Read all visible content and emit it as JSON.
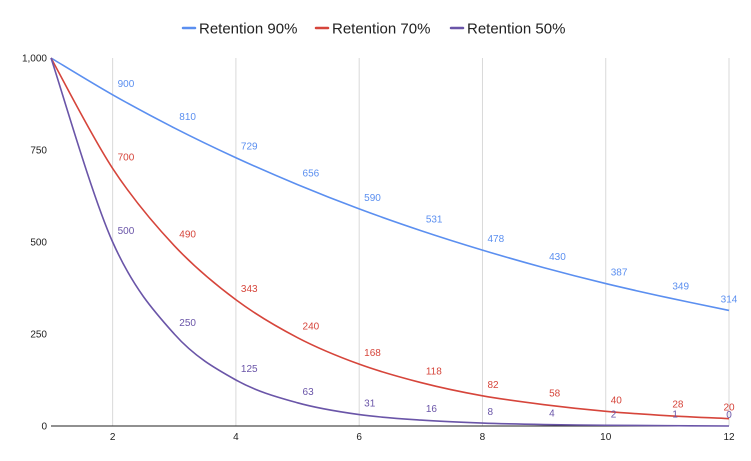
{
  "chart_data": {
    "type": "line",
    "title": "",
    "xlabel": "",
    "ylabel": "",
    "xlim": [
      1,
      12
    ],
    "ylim": [
      0,
      1000
    ],
    "x_ticks": [
      2,
      4,
      6,
      8,
      10,
      12
    ],
    "x_tick_labels": [
      "2",
      "4",
      "6",
      "8",
      "10",
      "12"
    ],
    "y_ticks": [
      0,
      250,
      500,
      750,
      1000
    ],
    "y_tick_labels": [
      "0",
      "250",
      "500",
      "750",
      "1,000"
    ],
    "grid": "vertical",
    "legend_position": "top-center",
    "x": [
      1,
      2,
      3,
      4,
      5,
      6,
      7,
      8,
      9,
      10,
      11,
      12
    ],
    "series": [
      {
        "name": "Retention 90%",
        "color": "#5b8ff0",
        "values": [
          1000,
          900,
          810,
          729,
          656,
          590,
          531,
          478,
          430,
          387,
          349,
          314
        ],
        "labels": [
          "",
          "900",
          "810",
          "729",
          "656",
          "590",
          "531",
          "478",
          "430",
          "387",
          "349",
          "314"
        ]
      },
      {
        "name": "Retention 70%",
        "color": "#d6453b",
        "values": [
          1000,
          700,
          490,
          343,
          240,
          168,
          118,
          82,
          58,
          40,
          28,
          20
        ],
        "labels": [
          "",
          "700",
          "490",
          "343",
          "240",
          "168",
          "118",
          "82",
          "58",
          "40",
          "28",
          "20"
        ]
      },
      {
        "name": "Retention 50%",
        "color": "#6a55a8",
        "values": [
          1000,
          500,
          250,
          125,
          63,
          31,
          16,
          8,
          4,
          2,
          1,
          0
        ],
        "labels": [
          "",
          "500",
          "250",
          "125",
          "63",
          "31",
          "16",
          "8",
          "4",
          "2",
          "1",
          "0"
        ]
      }
    ]
  }
}
